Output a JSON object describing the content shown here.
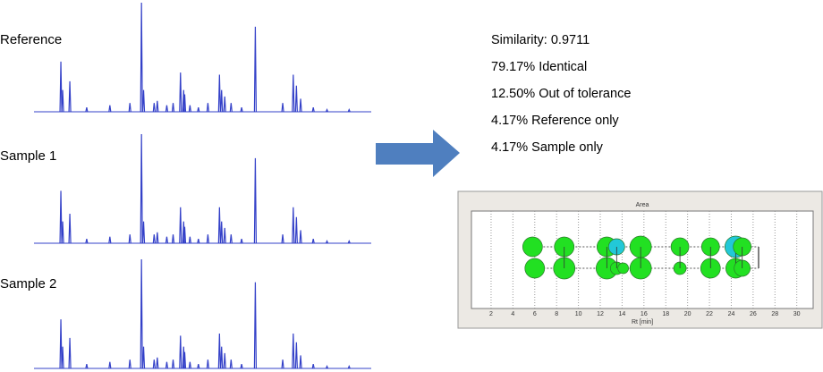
{
  "traces": {
    "xlim": [
      0,
      32
    ],
    "peak_rt": [
      2.55,
      2.72,
      3.4,
      5.0,
      7.2,
      9.1,
      10.2,
      10.4,
      11.4,
      11.7,
      12.6,
      13.2,
      13.9,
      14.2,
      14.3,
      14.8,
      15.6,
      16.5,
      17.6,
      17.8,
      18.1,
      18.7,
      19.7,
      21.0,
      23.6,
      24.6,
      24.9,
      25.3,
      26.5,
      27.8,
      29.9
    ],
    "items": [
      {
        "label": "Reference",
        "heights": [
          46,
          20,
          28,
          4,
          6,
          8,
          100,
          20,
          8,
          10,
          6,
          8,
          36,
          20,
          16,
          6,
          4,
          8,
          34,
          20,
          14,
          8,
          4,
          78,
          8,
          34,
          24,
          12,
          4,
          2,
          2
        ]
      },
      {
        "label": "Sample 1",
        "heights": [
          48,
          20,
          27,
          4,
          6,
          8,
          100,
          20,
          8,
          10,
          6,
          8,
          33,
          20,
          15,
          6,
          4,
          8,
          33,
          20,
          14,
          8,
          4,
          78,
          8,
          33,
          24,
          12,
          4,
          2,
          2
        ]
      },
      {
        "label": "Sample 2",
        "heights": [
          45,
          20,
          28,
          4,
          6,
          8,
          100,
          20,
          8,
          10,
          6,
          8,
          30,
          20,
          15,
          6,
          4,
          8,
          32,
          20,
          14,
          8,
          4,
          79,
          8,
          32,
          24,
          12,
          4,
          2,
          2
        ]
      }
    ]
  },
  "stats": [
    "Similarity: 0.9711",
    "79.17% Identical",
    "12.50% Out of tolerance",
    "4.17% Reference only",
    "4.17% Sample only"
  ],
  "chart_data": {
    "type": "bubble",
    "title": "Area",
    "x_label": "Rt [min]",
    "xlim": [
      0.2,
      31.5
    ],
    "xticks": [
      2,
      4,
      6,
      8,
      10,
      12,
      14,
      16,
      18,
      20,
      22,
      24,
      26,
      28,
      30
    ],
    "x": [
      5.8,
      6.0,
      8.7,
      12.6,
      13.5,
      14.1,
      15.7,
      19.3,
      22.1,
      24.4,
      25.0
    ],
    "reference_size": [
      11,
      null,
      11,
      11,
      9,
      null,
      12,
      10,
      10,
      12,
      10
    ],
    "sample_size": [
      null,
      11,
      12,
      12,
      7,
      6,
      12,
      7,
      11,
      11,
      9
    ],
    "color": "#22e022",
    "highlight_color": "#22c8d8"
  }
}
